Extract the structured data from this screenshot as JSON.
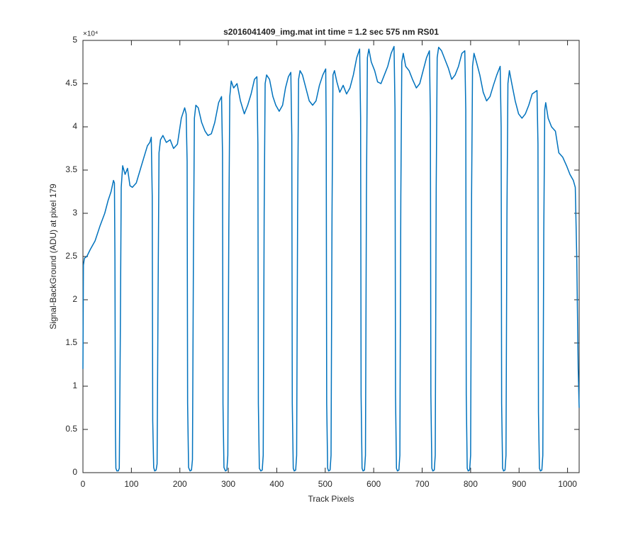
{
  "chart_data": {
    "type": "line",
    "title": "s2016041409_img.mat int time = 1.2 sec  575 nm RS01",
    "x_label": "Track Pixels",
    "y_label": "Signal-BackGround (ADU) at pixel 179",
    "y_exponent_label": "×10⁴",
    "xlim": [
      0,
      1024
    ],
    "xticks": [
      0,
      100,
      200,
      300,
      400,
      500,
      600,
      700,
      800,
      900,
      1000
    ],
    "ylim": [
      0,
      50000
    ],
    "yticks": [
      0,
      {
        "value": 5000,
        "label": "0.5"
      },
      {
        "value": 10000,
        "label": "1"
      },
      {
        "value": 15000,
        "label": "1.5"
      },
      {
        "value": 20000,
        "label": "2"
      },
      {
        "value": 25000,
        "label": "2.5"
      },
      {
        "value": 30000,
        "label": "3"
      },
      {
        "value": 35000,
        "label": "3.5"
      },
      {
        "value": 40000,
        "label": "4"
      },
      {
        "value": 45000,
        "label": "4.5"
      },
      {
        "value": 50000,
        "label": "5"
      }
    ],
    "grid": false,
    "series": [
      {
        "color": "#0072bd",
        "x": [
          0,
          1,
          3,
          8,
          15,
          25,
          35,
          45,
          52,
          58,
          63,
          65,
          66,
          67,
          68,
          70,
          73,
          75,
          77,
          79,
          82,
          87,
          92,
          97,
          102,
          110,
          118,
          126,
          133,
          138,
          141,
          143,
          144,
          146,
          148,
          151,
          153,
          155,
          157,
          160,
          165,
          172,
          180,
          187,
          195,
          203,
          210,
          213,
          215,
          216,
          218,
          221,
          224,
          226,
          228,
          230,
          233,
          238,
          245,
          252,
          258,
          265,
          272,
          280,
          286,
          288,
          289,
          291,
          294,
          297,
          299,
          301,
          303,
          306,
          311,
          318,
          325,
          333,
          340,
          347,
          354,
          359,
          361,
          362,
          364,
          367,
          370,
          372,
          374,
          376,
          379,
          385,
          392,
          398,
          405,
          412,
          418,
          424,
          429,
          431,
          432,
          434,
          436,
          439,
          441,
          443,
          445,
          448,
          453,
          460,
          467,
          474,
          481,
          488,
          495,
          501,
          502,
          503,
          505,
          507,
          510,
          512,
          514,
          516,
          519,
          524,
          530,
          537,
          544,
          551,
          558,
          565,
          571,
          573,
          574,
          576,
          578,
          581,
          583,
          585,
          587,
          590,
          595,
          602,
          608,
          615,
          622,
          629,
          636,
          642,
          644,
          645,
          647,
          649,
          652,
          654,
          656,
          658,
          661,
          666,
          673,
          680,
          688,
          695,
          702,
          709,
          715,
          717,
          718,
          720,
          722,
          725,
          727,
          729,
          731,
          734,
          740,
          747,
          754,
          761,
          768,
          775,
          782,
          788,
          790,
          791,
          793,
          795,
          798,
          800,
          802,
          804,
          807,
          812,
          819,
          826,
          833,
          840,
          847,
          854,
          861,
          863,
          864,
          866,
          868,
          871,
          873,
          875,
          877,
          880,
          885,
          892,
          899,
          906,
          913,
          920,
          927,
          937,
          939,
          940,
          942,
          944,
          947,
          949,
          951,
          953,
          955,
          960,
          967,
          975,
          982,
          990,
          998,
          1005,
          1012,
          1016,
          1019,
          1022,
          1024
        ],
        "values": [
          12000,
          24000,
          24800,
          25000,
          25800,
          26800,
          28500,
          30000,
          31500,
          32500,
          33800,
          33500,
          25000,
          5000,
          500,
          200,
          200,
          500,
          15000,
          33000,
          35500,
          34500,
          35200,
          33200,
          33000,
          33500,
          35000,
          36500,
          37800,
          38200,
          38800,
          32000,
          6000,
          600,
          200,
          300,
          1000,
          20000,
          37000,
          38500,
          39000,
          38200,
          38500,
          37500,
          38000,
          41000,
          42200,
          41500,
          36000,
          8000,
          600,
          200,
          300,
          1500,
          25000,
          41000,
          42500,
          42200,
          40500,
          39500,
          39000,
          39200,
          40500,
          42800,
          43500,
          37000,
          8000,
          600,
          200,
          300,
          2000,
          28000,
          43500,
          45300,
          44500,
          45000,
          43000,
          41500,
          42500,
          43800,
          45500,
          45800,
          38000,
          8000,
          500,
          200,
          300,
          2000,
          30000,
          45000,
          46000,
          45500,
          43500,
          42500,
          41800,
          42500,
          44500,
          45800,
          46300,
          39000,
          8000,
          500,
          200,
          300,
          2000,
          30000,
          45500,
          46500,
          46000,
          44500,
          43000,
          42500,
          43000,
          44800,
          46000,
          46700,
          40000,
          8000,
          500,
          200,
          300,
          2000,
          30000,
          46000,
          46500,
          45200,
          44000,
          44800,
          43800,
          44500,
          46000,
          48000,
          49000,
          41000,
          9000,
          500,
          200,
          300,
          2000,
          32000,
          48000,
          49000,
          47500,
          46500,
          45200,
          45000,
          46000,
          47000,
          48500,
          49300,
          42000,
          9000,
          500,
          200,
          300,
          2000,
          32000,
          47500,
          48500,
          47000,
          46500,
          45500,
          44500,
          45000,
          46500,
          48000,
          48800,
          41000,
          9000,
          500,
          200,
          300,
          2000,
          33000,
          48000,
          49200,
          48800,
          47800,
          46800,
          45500,
          46000,
          47000,
          48500,
          48800,
          42000,
          9000,
          500,
          200,
          300,
          2000,
          32000,
          47000,
          48500,
          47500,
          46000,
          44000,
          43000,
          43500,
          44800,
          46000,
          47000,
          40000,
          8000,
          500,
          200,
          300,
          2000,
          30000,
          45000,
          46500,
          45000,
          43000,
          41500,
          41000,
          41500,
          42500,
          43800,
          44200,
          38000,
          7000,
          500,
          200,
          300,
          2000,
          28000,
          42000,
          42800,
          41000,
          40000,
          39500,
          37000,
          36500,
          35500,
          34500,
          33800,
          33000,
          25000,
          12000,
          7500
        ]
      }
    ]
  }
}
